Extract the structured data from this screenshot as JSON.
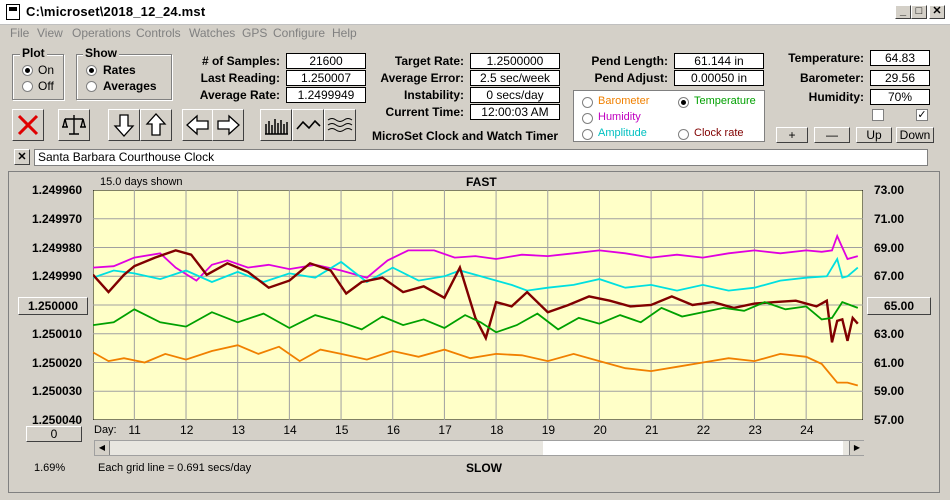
{
  "window": {
    "title": "C:\\microset\\2018_12_24.mst"
  },
  "menu": [
    "File",
    "View",
    "Operations",
    "Controls",
    "Watches",
    "GPS",
    "Configure",
    "Help"
  ],
  "plot_group": {
    "title": "Plot",
    "options": [
      "On",
      "Off"
    ],
    "selected": "On"
  },
  "show_group": {
    "title": "Show",
    "options": [
      "Rates",
      "Averages"
    ],
    "selected": "Rates"
  },
  "stats": {
    "samples_label": "# of Samples:",
    "samples": "21600",
    "last_reading_label": "Last Reading:",
    "last_reading": "1.250007",
    "avg_rate_label": "Average Rate:",
    "avg_rate": "1.2499949",
    "target_rate_label": "Target Rate:",
    "target_rate": "1.2500000",
    "avg_error_label": "Average Error:",
    "avg_error": "2.5 sec/week",
    "instability_label": "Instability:",
    "instability": "0 secs/day",
    "current_time_label": "Current Time:",
    "current_time": "12:00:03 AM",
    "pend_length_label": "Pend Length:",
    "pend_length": "61.144 in",
    "pend_adjust_label": "Pend Adjust:",
    "pend_adjust": "0.00050 in",
    "temperature_label": "Temperature:",
    "temperature": "64.83",
    "barometer_label": "Barometer:",
    "barometer": "29.56",
    "humidity_label": "Humidity:",
    "humidity": "70%"
  },
  "app_name": "MicroSet Clock and Watch Timer",
  "overlay_options": [
    {
      "label": "Barometer",
      "color": "#f08000",
      "selected": false
    },
    {
      "label": "Temperature",
      "color": "#00a000",
      "selected": true
    },
    {
      "label": "Humidity",
      "color": "#c000c0",
      "selected": false
    },
    {
      "label": "Amplitude",
      "color": "#00c0c0",
      "selected": false
    },
    {
      "label": "Clock rate",
      "color": "#800000",
      "selected": false
    }
  ],
  "checkbox_right": {
    "checked": true,
    "mark": "✓"
  },
  "small_buttons": [
    "+",
    "—",
    "Up",
    "Down"
  ],
  "clock_name": "Santa Barbara Courthouse Clock",
  "chart_header": {
    "days_shown": "15.0 days shown",
    "top": "FAST",
    "bottom": "SLOW",
    "grid_note": "Each grid line = 0.691 secs/day",
    "percent": "1.69%",
    "left_btn": "0",
    "right_btn": "65.00",
    "left_sel": "1.250000",
    "day_prefix": "Day:"
  },
  "colors": {
    "plot_bg": "#ffffc8",
    "grid": "#a0a0a0",
    "clock": "#800000",
    "temp": "#00a000",
    "humidity": "#e000e0",
    "amplitude": "#00e0e0",
    "barometer": "#f08000"
  },
  "chart_data": {
    "type": "line",
    "x_label": "Day",
    "x_ticks": [
      "11",
      "12",
      "13",
      "14",
      "15",
      "16",
      "17",
      "18",
      "19",
      "20",
      "21",
      "22",
      "23",
      "24"
    ],
    "y_left_ticks": [
      "1.249960",
      "1.249970",
      "1.249980",
      "1.249990",
      "1.250000",
      "1.250010",
      "1.250020",
      "1.250030",
      "1.250040"
    ],
    "y_left_range": [
      1.24996,
      1.25004
    ],
    "y_right_ticks": [
      "73.00",
      "71.00",
      "69.00",
      "67.00",
      "65.00",
      "63.00",
      "61.00",
      "59.00",
      "57.00"
    ],
    "y_right_range": [
      57,
      73
    ],
    "x_range": [
      10.2,
      25.1
    ],
    "series": [
      {
        "name": "Humidity",
        "color": "#e000e0",
        "points": [
          [
            10.2,
            67.6
          ],
          [
            10.6,
            67.7
          ],
          [
            11,
            68.3
          ],
          [
            11.5,
            68.6
          ],
          [
            11.8,
            67.6
          ],
          [
            12.2,
            66.7
          ],
          [
            12.5,
            67.8
          ],
          [
            12.8,
            68.1
          ],
          [
            13.2,
            67.6
          ],
          [
            13.6,
            67.8
          ],
          [
            14,
            67.5
          ],
          [
            14.5,
            67.8
          ],
          [
            15,
            67.4
          ],
          [
            15.5,
            66.9
          ],
          [
            15.9,
            68.1
          ],
          [
            16.3,
            68.8
          ],
          [
            16.8,
            68.8
          ],
          [
            17.2,
            68.3
          ],
          [
            17.6,
            68.4
          ],
          [
            18,
            68.2
          ],
          [
            18.5,
            68.5
          ],
          [
            19,
            68.4
          ],
          [
            19.5,
            68.6
          ],
          [
            20,
            68.8
          ],
          [
            20.5,
            68.6
          ],
          [
            21,
            68.3
          ],
          [
            21.5,
            68.5
          ],
          [
            22,
            68.3
          ],
          [
            22.5,
            68.6
          ],
          [
            23,
            68.8
          ],
          [
            23.5,
            68.6
          ],
          [
            24,
            68.8
          ],
          [
            24.3,
            68.7
          ],
          [
            24.5,
            68.8
          ],
          [
            24.6,
            69.8
          ],
          [
            24.7,
            69.0
          ],
          [
            24.8,
            68.2
          ],
          [
            25.0,
            68.4
          ]
        ]
      },
      {
        "name": "Amplitude",
        "color": "#00e0e0",
        "points": [
          [
            10.2,
            66.9
          ],
          [
            10.6,
            67.4
          ],
          [
            11,
            67.2
          ],
          [
            11.5,
            66.8
          ],
          [
            12,
            67.4
          ],
          [
            12.5,
            66.6
          ],
          [
            13,
            67.3
          ],
          [
            13.5,
            66.6
          ],
          [
            14,
            67.2
          ],
          [
            14.5,
            66.9
          ],
          [
            15,
            68.0
          ],
          [
            15.5,
            66.6
          ],
          [
            16,
            67.6
          ],
          [
            16.5,
            66.7
          ],
          [
            17,
            67.0
          ],
          [
            17.3,
            67.4
          ],
          [
            17.6,
            67.1
          ],
          [
            17.9,
            66.8
          ],
          [
            18.3,
            66.4
          ],
          [
            18.6,
            66.0
          ],
          [
            19,
            66.2
          ],
          [
            19.5,
            66.4
          ],
          [
            20,
            66.8
          ],
          [
            20.5,
            66.2
          ],
          [
            21,
            66.4
          ],
          [
            21.5,
            66.0
          ],
          [
            22,
            66.4
          ],
          [
            22.5,
            66.0
          ],
          [
            23,
            66.2
          ],
          [
            23.5,
            66.7
          ],
          [
            24,
            66.9
          ],
          [
            24.4,
            67.0
          ],
          [
            24.6,
            68.2
          ],
          [
            24.7,
            66.9
          ],
          [
            24.8,
            67.0
          ],
          [
            25.0,
            67.6
          ]
        ]
      },
      {
        "name": "Clock rate",
        "color": "#800000",
        "points": [
          [
            10.2,
            67.1
          ],
          [
            10.5,
            65.9
          ],
          [
            10.8,
            67.1
          ],
          [
            11,
            67.7
          ],
          [
            11.4,
            68.3
          ],
          [
            11.8,
            68.8
          ],
          [
            12.1,
            68.5
          ],
          [
            12.4,
            67.1
          ],
          [
            12.8,
            67.9
          ],
          [
            13.2,
            67.3
          ],
          [
            13.6,
            66.2
          ],
          [
            14,
            66.7
          ],
          [
            14.4,
            67.9
          ],
          [
            14.8,
            67.4
          ],
          [
            15.1,
            65.8
          ],
          [
            15.4,
            66.6
          ],
          [
            15.8,
            66.9
          ],
          [
            16.2,
            65.9
          ],
          [
            16.6,
            66.3
          ],
          [
            17,
            65.5
          ],
          [
            17.3,
            67.6
          ],
          [
            17.6,
            64.1
          ],
          [
            17.8,
            62.7
          ],
          [
            18.0,
            65.2
          ],
          [
            18.3,
            64.9
          ],
          [
            18.6,
            65.9
          ],
          [
            19,
            64.5
          ],
          [
            19.4,
            65.0
          ],
          [
            19.8,
            65.6
          ],
          [
            20.2,
            65.3
          ],
          [
            20.6,
            64.9
          ],
          [
            21,
            65.0
          ],
          [
            21.4,
            65.6
          ],
          [
            21.8,
            65.0
          ],
          [
            22.2,
            65.2
          ],
          [
            22.6,
            64.8
          ],
          [
            23,
            65.1
          ],
          [
            23.4,
            65.2
          ],
          [
            23.8,
            65.3
          ],
          [
            24.2,
            64.9
          ],
          [
            24.4,
            65.3
          ],
          [
            24.5,
            62.4
          ],
          [
            24.6,
            63.9
          ],
          [
            24.7,
            64.0
          ],
          [
            24.8,
            62.5
          ],
          [
            24.9,
            64.1
          ],
          [
            25.0,
            63.7
          ]
        ]
      },
      {
        "name": "Temperature",
        "color": "#00a000",
        "points": [
          [
            10.2,
            63.6
          ],
          [
            10.6,
            63.8
          ],
          [
            11,
            64.7
          ],
          [
            11.5,
            63.8
          ],
          [
            12,
            63.5
          ],
          [
            12.5,
            64.5
          ],
          [
            13,
            63.8
          ],
          [
            13.5,
            64.4
          ],
          [
            14,
            63.4
          ],
          [
            14.5,
            64.3
          ],
          [
            15,
            63.8
          ],
          [
            15.4,
            63.3
          ],
          [
            15.8,
            64.2
          ],
          [
            16.2,
            63.6
          ],
          [
            16.6,
            64.0
          ],
          [
            17,
            63.4
          ],
          [
            17.4,
            64.3
          ],
          [
            17.7,
            63.8
          ],
          [
            18,
            63.1
          ],
          [
            18.4,
            63.6
          ],
          [
            18.8,
            64.4
          ],
          [
            19.2,
            63.3
          ],
          [
            19.6,
            64.1
          ],
          [
            20,
            63.7
          ],
          [
            20.4,
            64.3
          ],
          [
            20.8,
            63.8
          ],
          [
            21.2,
            64.8
          ],
          [
            21.6,
            64.2
          ],
          [
            22,
            64.5
          ],
          [
            22.4,
            64.8
          ],
          [
            22.8,
            64.6
          ],
          [
            23.2,
            65.2
          ],
          [
            23.6,
            64.7
          ],
          [
            24,
            64.9
          ],
          [
            24.3,
            64.0
          ],
          [
            24.5,
            64.1
          ],
          [
            24.7,
            65.2
          ],
          [
            25.0,
            64.8
          ]
        ]
      },
      {
        "name": "Barometer",
        "color": "#f08000",
        "points": [
          [
            10.2,
            61.7
          ],
          [
            10.5,
            61.1
          ],
          [
            10.8,
            61.3
          ],
          [
            11.2,
            61.0
          ],
          [
            11.6,
            61.6
          ],
          [
            12,
            61.2
          ],
          [
            12.5,
            61.8
          ],
          [
            13,
            62.2
          ],
          [
            13.4,
            61.6
          ],
          [
            13.8,
            62.1
          ],
          [
            14.2,
            61.1
          ],
          [
            14.6,
            61.9
          ],
          [
            15,
            61.6
          ],
          [
            15.5,
            61.2
          ],
          [
            16,
            61.8
          ],
          [
            16.5,
            61.4
          ],
          [
            17,
            61.9
          ],
          [
            17.5,
            61.3
          ],
          [
            18,
            61.6
          ],
          [
            18.5,
            61.5
          ],
          [
            19,
            61.1
          ],
          [
            19.5,
            61.6
          ],
          [
            20,
            61.1
          ],
          [
            20.5,
            60.6
          ],
          [
            21,
            60.4
          ],
          [
            21.5,
            60.7
          ],
          [
            22,
            61.0
          ],
          [
            22.5,
            61.3
          ],
          [
            23,
            61.1
          ],
          [
            23.5,
            61.6
          ],
          [
            24,
            61.4
          ],
          [
            24.3,
            60.9
          ],
          [
            24.6,
            59.6
          ],
          [
            24.8,
            59.6
          ],
          [
            25.0,
            59.4
          ]
        ]
      }
    ]
  }
}
